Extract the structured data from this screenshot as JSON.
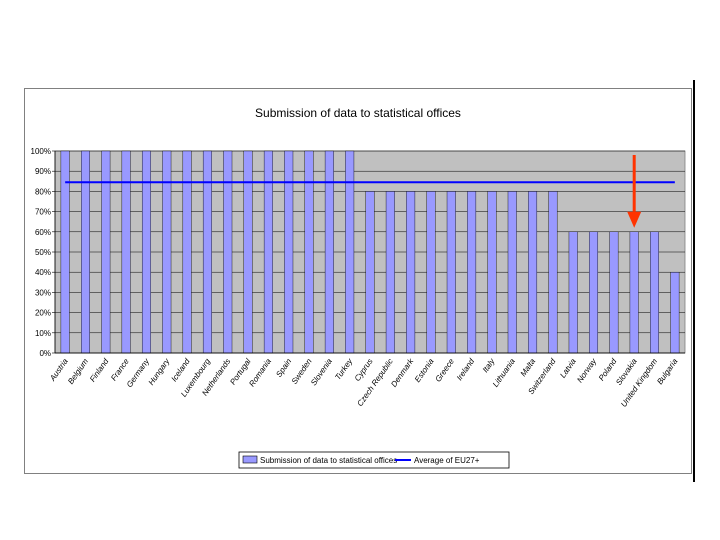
{
  "chart_data": {
    "type": "bar",
    "title": "Submission of data to statistical offices",
    "xlabel": "",
    "ylabel": "",
    "ylim": [
      0,
      100
    ],
    "yticks": [
      0,
      10,
      20,
      30,
      40,
      50,
      60,
      70,
      80,
      90,
      100
    ],
    "ytick_labels": [
      "0%",
      "10%",
      "20%",
      "30%",
      "40%",
      "50%",
      "60%",
      "70%",
      "80%",
      "90%",
      "100%"
    ],
    "categories": [
      "Austria",
      "Belgium",
      "Finland",
      "France",
      "Germany",
      "Hungary",
      "Iceland",
      "Luxembourg",
      "Netherlands",
      "Portugal",
      "Romania",
      "Spain",
      "Sweden",
      "Slovenia",
      "Turkey",
      "Cyprus",
      "Czech Republic",
      "Denmark",
      "Estonia",
      "Greece",
      "Ireland",
      "Italy",
      "Lithuania",
      "Malta",
      "Switzerland",
      "Latvia",
      "Norway",
      "Poland",
      "Slovakia",
      "United Kingdom",
      "Bulgaria"
    ],
    "series": [
      {
        "name": "Submission of data to statistical offices",
        "kind": "bar",
        "color": "#9999ff",
        "values": [
          100,
          100,
          100,
          100,
          100,
          100,
          100,
          100,
          100,
          100,
          100,
          100,
          100,
          100,
          100,
          80,
          80,
          80,
          80,
          80,
          80,
          80,
          80,
          80,
          80,
          60,
          60,
          60,
          60,
          60,
          40
        ]
      },
      {
        "name": "Average of EU27+",
        "kind": "line",
        "color": "#0000ff",
        "value": 84.5
      }
    ],
    "grid": true,
    "legend_position": "bottom",
    "plot_background": "#c0c0c0",
    "annotation": {
      "type": "arrow",
      "color": "#ff3300",
      "category": "Slovakia"
    }
  }
}
